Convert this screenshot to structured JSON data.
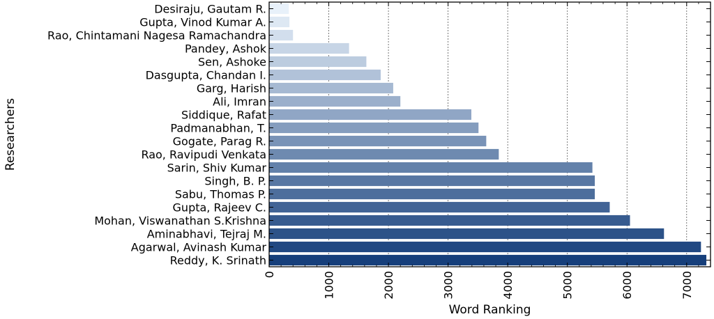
{
  "chart_data": {
    "type": "bar",
    "orientation": "horizontal",
    "xlabel": "Word Ranking",
    "ylabel": "Researchers",
    "xlim": [
      0,
      7400
    ],
    "xticks": [
      0,
      1000,
      2000,
      3000,
      4000,
      5000,
      6000,
      7000
    ],
    "grid": "vertical dotted",
    "colormap": "Blues",
    "color_range": [
      "#e8f1fa",
      "#163f7b"
    ],
    "categories": [
      "Desiraju, Gautam R.",
      "Gupta, Vinod Kumar A.",
      "Rao, Chintamani Nagesa Ramachandra",
      "Pandey, Ashok",
      "Sen, Ashoke",
      "Dasgupta, Chandan I.",
      "Garg, Harish",
      "Ali, Imran",
      "Siddique, Rafat",
      "Padmanabhan, T.",
      "Gogate, Parag R.",
      "Rao, Ravipudi Venkata",
      "Sarin, Shiv Kumar",
      "Singh, B. P.",
      "Sabu, Thomas P.",
      "Gupta, Rajeev C.",
      "Mohan, Viswanathan S.Krishna",
      "Aminabhavi, Tejraj M.",
      "Agarwal, Avinash Kumar",
      "Reddy, K. Srinath"
    ],
    "values": [
      330,
      340,
      400,
      1340,
      1630,
      1870,
      2080,
      2200,
      3390,
      3510,
      3640,
      3850,
      5420,
      5460,
      5460,
      5710,
      6050,
      6620,
      7240,
      7330
    ]
  }
}
